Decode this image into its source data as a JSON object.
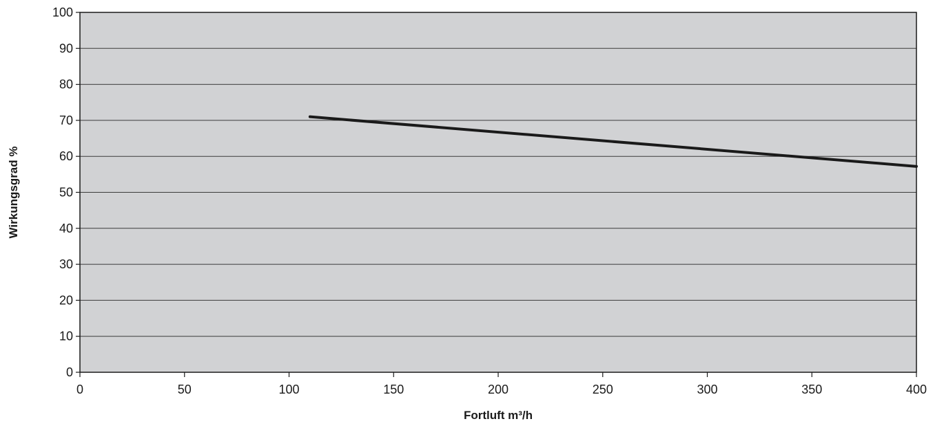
{
  "chart_data": {
    "type": "line",
    "title": "",
    "xlabel": "Fortluft m³/h",
    "ylabel": "Wirkungsgrad %",
    "xlim": [
      0,
      400
    ],
    "ylim": [
      0,
      100
    ],
    "x_ticks": [
      0,
      50,
      100,
      150,
      200,
      250,
      300,
      350,
      400
    ],
    "y_ticks": [
      0,
      10,
      20,
      30,
      40,
      50,
      60,
      70,
      80,
      90,
      100
    ],
    "grid": "horizontal",
    "legend": "none",
    "colors": {
      "plot_background": "#d1d2d4",
      "line": "#1a1a1a",
      "gridline": "#3a3a3a"
    },
    "series": [
      {
        "x": [
          110,
          400
        ],
        "y": [
          71,
          57.2
        ]
      }
    ]
  }
}
